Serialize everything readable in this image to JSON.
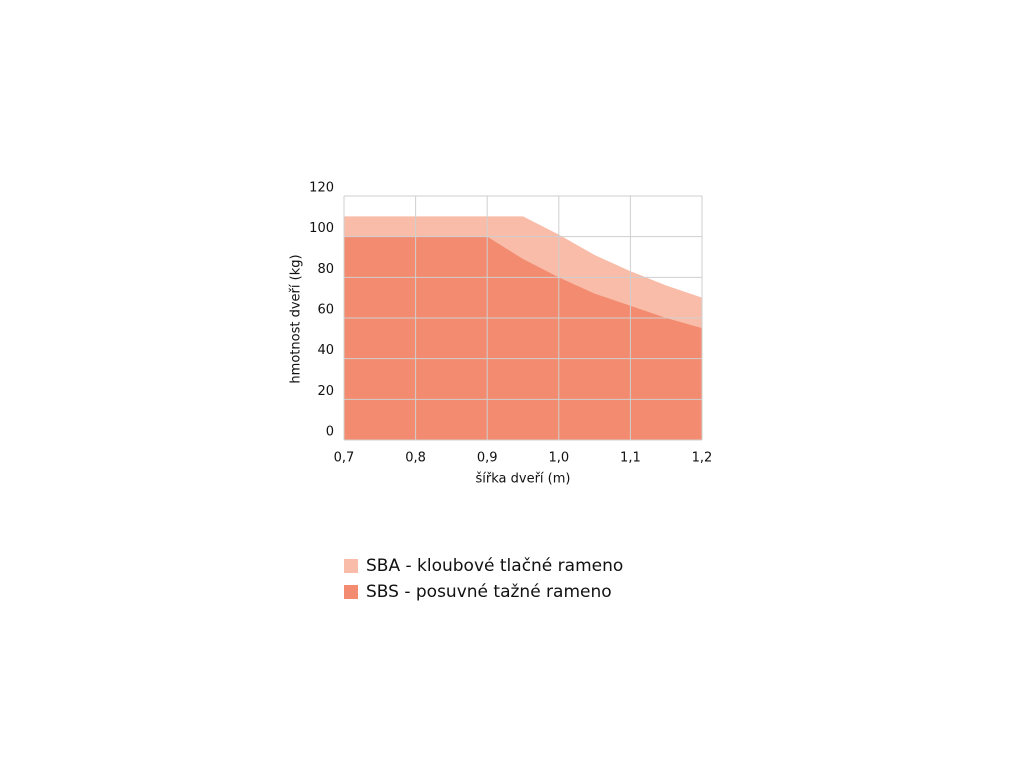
{
  "chart_data": {
    "type": "area",
    "x_label": "šířka dveří (m)",
    "y_label": "hmotnost dveří (kg)",
    "series": [
      {
        "name": "SBA - kloubové tlačné rameno",
        "color": "#f9bca8",
        "x": [
          0.7,
          0.95,
          1.0,
          1.05,
          1.1,
          1.15,
          1.2
        ],
        "values": [
          110,
          110,
          101,
          91,
          83,
          76,
          70
        ]
      },
      {
        "name": "SBS - posuvné tažné rameno",
        "color": "#f28b6f",
        "x": [
          0.7,
          0.9,
          0.95,
          1.0,
          1.05,
          1.1,
          1.15,
          1.2
        ],
        "values": [
          100,
          100,
          89,
          80,
          72,
          66,
          60,
          55
        ]
      }
    ],
    "xlim": [
      0.7,
      1.2
    ],
    "xticks": [
      {
        "value": 0.7,
        "label": "0,7"
      },
      {
        "value": 0.8,
        "label": "0,8"
      },
      {
        "value": 0.9,
        "label": "0,9"
      },
      {
        "value": 1.0,
        "label": "1,0"
      },
      {
        "value": 1.1,
        "label": "1,1"
      },
      {
        "value": 1.2,
        "label": "1,2"
      }
    ],
    "ylim": [
      0,
      120
    ],
    "yticks": [
      0,
      20,
      40,
      60,
      80,
      100,
      120
    ],
    "grid": true
  }
}
